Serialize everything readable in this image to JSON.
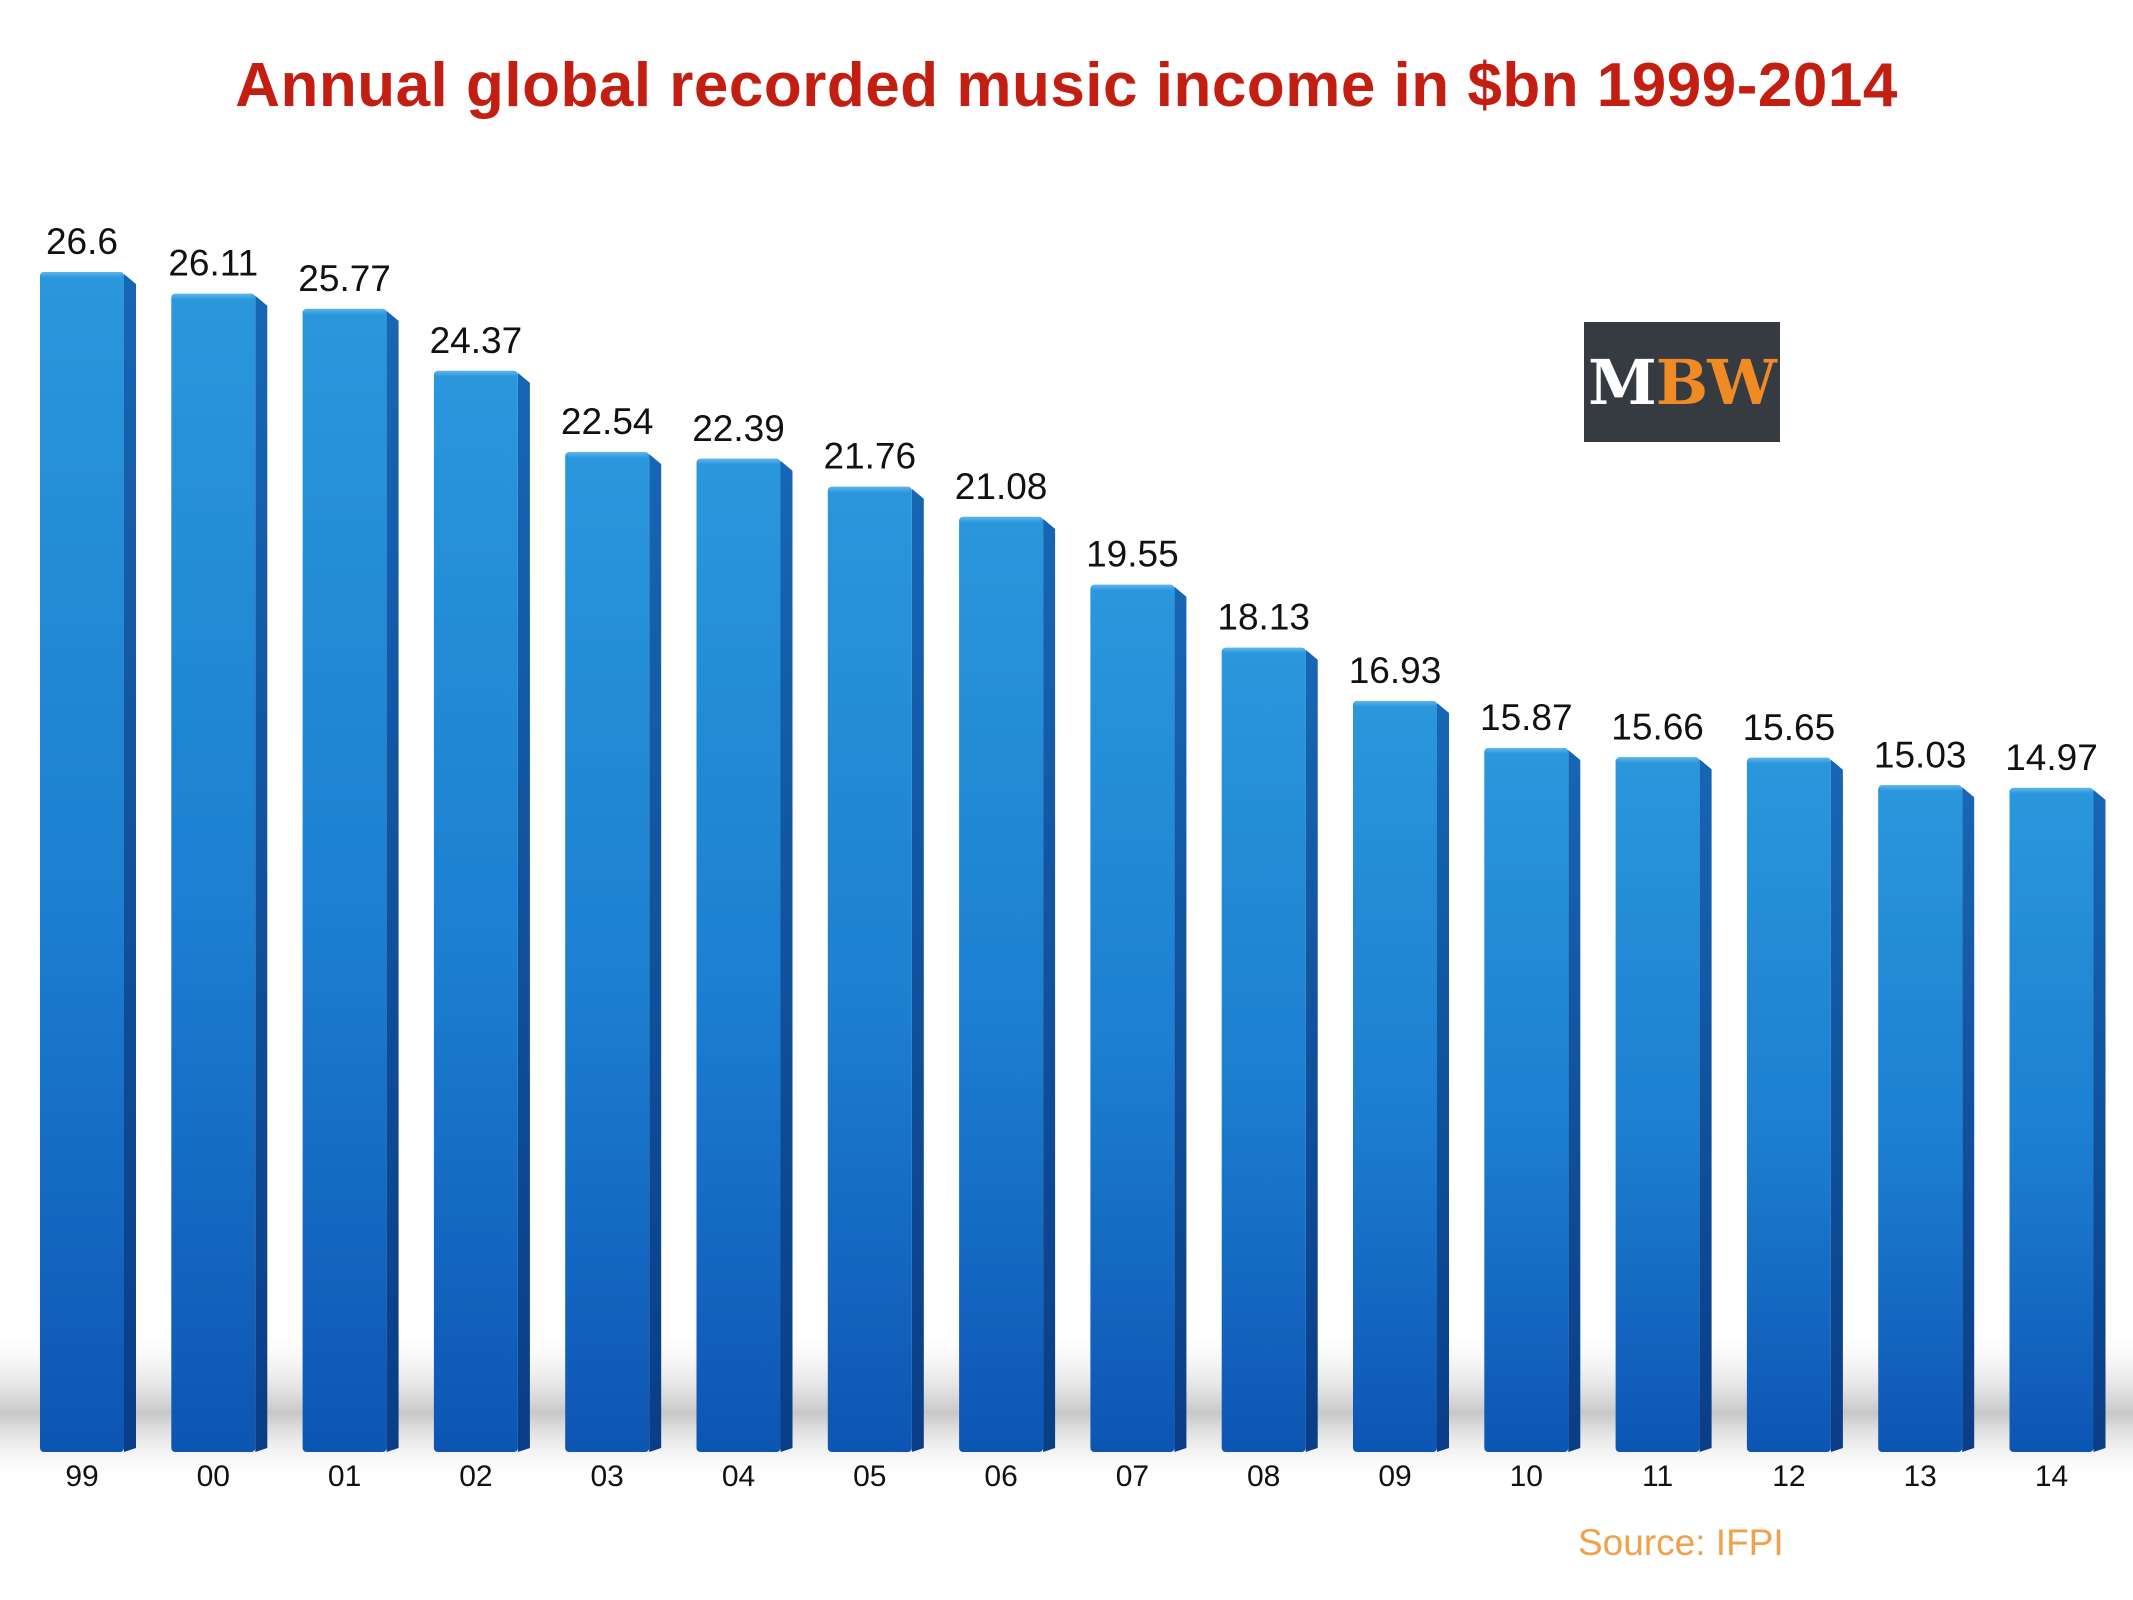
{
  "chart_data": {
    "type": "bar",
    "title": "Annual global recorded music income in $bn 1999-2014",
    "categories": [
      "99",
      "00",
      "01",
      "02",
      "03",
      "04",
      "05",
      "06",
      "07",
      "08",
      "09",
      "10",
      "11",
      "12",
      "13",
      "14"
    ],
    "values": [
      26.6,
      26.11,
      25.77,
      24.37,
      22.54,
      22.39,
      21.76,
      21.08,
      19.55,
      18.13,
      16.93,
      15.87,
      15.66,
      15.65,
      15.03,
      14.97
    ],
    "value_labels": [
      "26.6",
      "26.11",
      "25.77",
      "24.37",
      "22.54",
      "22.39",
      "21.76",
      "21.08",
      "19.55",
      "18.13",
      "16.93",
      "15.87",
      "15.66",
      "15.65",
      "15.03",
      "14.97"
    ],
    "xlabel": "",
    "ylabel": "",
    "ylim": [
      0,
      26.6
    ],
    "grid": false,
    "legend": "none",
    "bar_color": "#1e7fd0",
    "source": "Source: IFPI"
  },
  "logo": {
    "text_m": "M",
    "text_bw": "BW",
    "background": "#363b42",
    "accent": "#f08a24"
  },
  "colors": {
    "title": "#c21f12",
    "source": "#f0a14a"
  }
}
